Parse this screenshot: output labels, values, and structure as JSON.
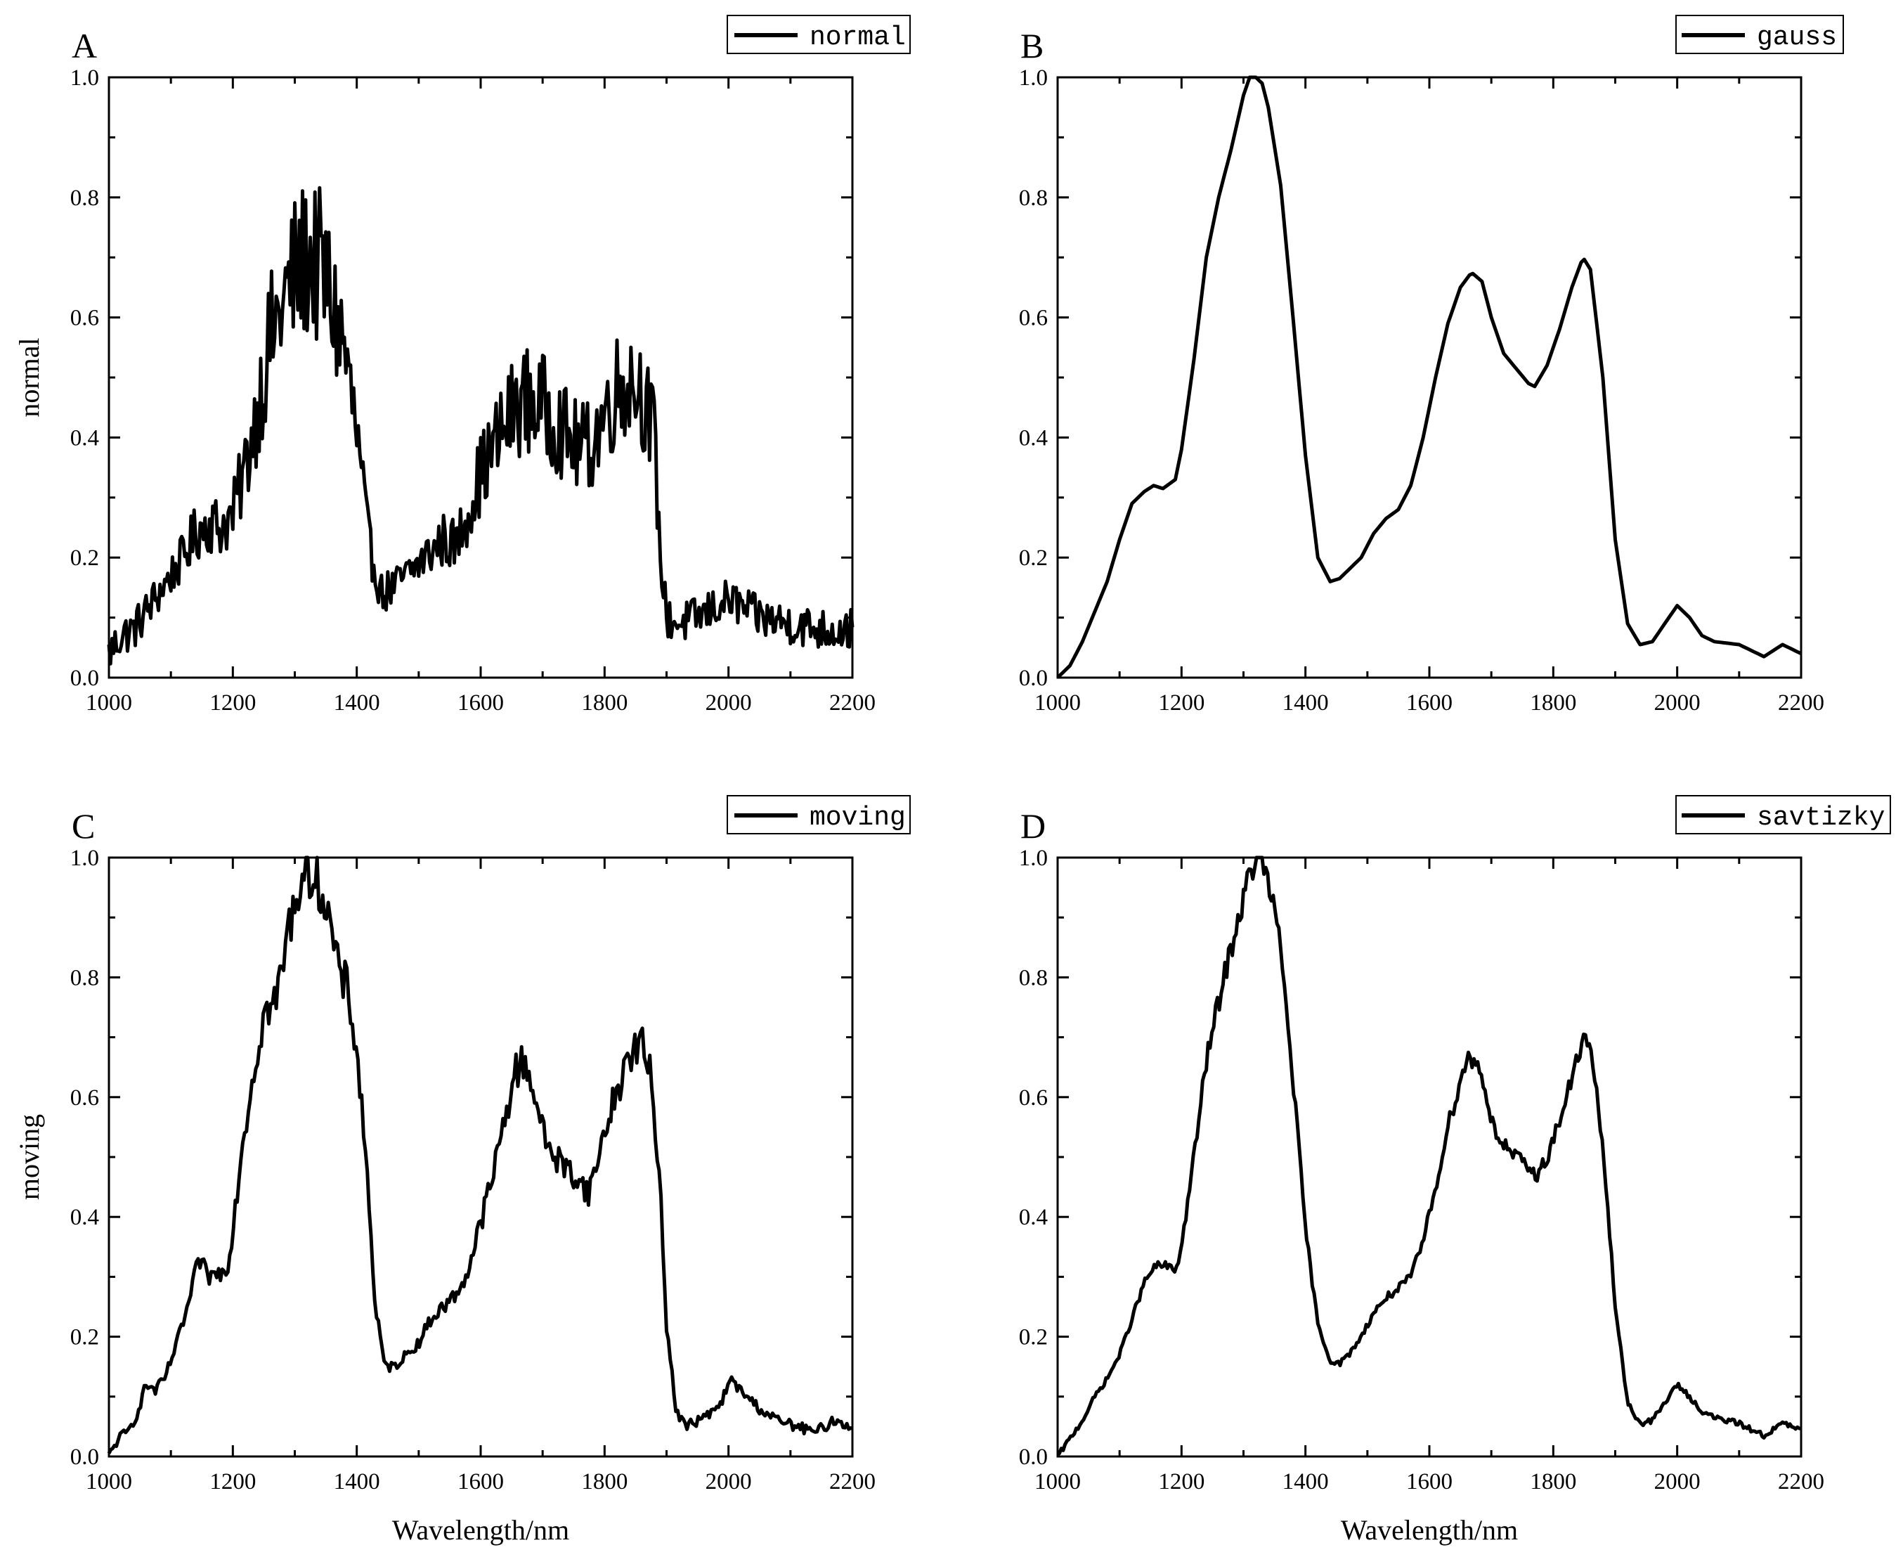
{
  "figure": {
    "x_axis_label": "Wavelength/nm"
  },
  "colors": {
    "line": "#000000",
    "axes": "#000000",
    "background": "#ffffff"
  },
  "chart_data": [
    {
      "panel": "A",
      "type": "line",
      "legend": "normal",
      "legend_position": "top-right",
      "ylabel": "normal",
      "xlabel": "",
      "xlim": [
        1000,
        2200
      ],
      "ylim": [
        0,
        1.0
      ],
      "xticks": [
        1000,
        1200,
        1400,
        1600,
        1800,
        2000,
        2200
      ],
      "yticks": [
        0.0,
        0.2,
        0.4,
        0.6,
        0.8,
        1.0
      ],
      "grid": false,
      "noise": 0.14,
      "series": [
        {
          "x": [
            1000,
            1020,
            1040,
            1060,
            1080,
            1100,
            1120,
            1140,
            1160,
            1180,
            1200,
            1220,
            1240,
            1260,
            1280,
            1300,
            1320,
            1340,
            1350,
            1360,
            1380,
            1400,
            1420,
            1440,
            1460,
            1480,
            1500,
            1520,
            1540,
            1560,
            1580,
            1600,
            1620,
            1640,
            1660,
            1680,
            1700,
            1720,
            1740,
            1760,
            1780,
            1800,
            1820,
            1840,
            1860,
            1880,
            1890,
            1900,
            1920,
            1950,
            2000,
            2050,
            2100,
            2150,
            2200
          ],
          "y": [
            0.04,
            0.07,
            0.08,
            0.11,
            0.14,
            0.17,
            0.2,
            0.24,
            0.26,
            0.25,
            0.27,
            0.35,
            0.45,
            0.56,
            0.62,
            0.67,
            0.7,
            0.68,
            0.66,
            0.62,
            0.55,
            0.4,
            0.22,
            0.14,
            0.15,
            0.17,
            0.19,
            0.21,
            0.23,
            0.22,
            0.28,
            0.34,
            0.38,
            0.42,
            0.46,
            0.46,
            0.45,
            0.43,
            0.4,
            0.38,
            0.39,
            0.44,
            0.48,
            0.5,
            0.48,
            0.4,
            0.2,
            0.1,
            0.09,
            0.1,
            0.13,
            0.1,
            0.09,
            0.08,
            0.08
          ]
        }
      ]
    },
    {
      "panel": "B",
      "type": "line",
      "legend": "gauss",
      "legend_position": "top-right",
      "ylabel": "",
      "xlabel": "",
      "xlim": [
        1000,
        2200
      ],
      "ylim": [
        0,
        1.0
      ],
      "xticks": [
        1000,
        1200,
        1400,
        1600,
        1800,
        2000,
        2200
      ],
      "yticks": [
        0.0,
        0.2,
        0.4,
        0.6,
        0.8,
        1.0
      ],
      "grid": false,
      "noise": 0,
      "series": [
        {
          "x": [
            1000,
            1020,
            1040,
            1060,
            1080,
            1100,
            1120,
            1140,
            1155,
            1170,
            1190,
            1200,
            1220,
            1240,
            1260,
            1280,
            1300,
            1310,
            1320,
            1330,
            1340,
            1360,
            1380,
            1400,
            1420,
            1440,
            1455,
            1470,
            1490,
            1510,
            1530,
            1550,
            1570,
            1590,
            1610,
            1630,
            1650,
            1668,
            1685,
            1700,
            1720,
            1740,
            1760,
            1770,
            1790,
            1810,
            1830,
            1848,
            1860,
            1880,
            1900,
            1920,
            1940,
            1960,
            1980,
            2000,
            2020,
            2040,
            2060,
            2100,
            2120,
            2140,
            2170,
            2200
          ],
          "y": [
            0.0,
            0.02,
            0.06,
            0.11,
            0.16,
            0.23,
            0.29,
            0.31,
            0.32,
            0.315,
            0.33,
            0.38,
            0.53,
            0.7,
            0.8,
            0.88,
            0.97,
            1.0,
            1.0,
            0.99,
            0.95,
            0.82,
            0.6,
            0.37,
            0.2,
            0.16,
            0.165,
            0.18,
            0.2,
            0.24,
            0.265,
            0.28,
            0.32,
            0.4,
            0.5,
            0.59,
            0.65,
            0.675,
            0.66,
            0.6,
            0.54,
            0.515,
            0.49,
            0.485,
            0.52,
            0.58,
            0.65,
            0.7,
            0.68,
            0.5,
            0.23,
            0.09,
            0.055,
            0.06,
            0.09,
            0.12,
            0.1,
            0.07,
            0.06,
            0.055,
            0.045,
            0.035,
            0.055,
            0.04
          ]
        }
      ]
    },
    {
      "panel": "C",
      "type": "line",
      "legend": "moving",
      "legend_position": "top-right",
      "ylabel": "moving",
      "xlabel": "Wavelength/nm",
      "xlim": [
        1000,
        2200
      ],
      "ylim": [
        0,
        1.0
      ],
      "xticks": [
        1000,
        1200,
        1400,
        1600,
        1800,
        2000,
        2200
      ],
      "yticks": [
        0.0,
        0.2,
        0.4,
        0.6,
        0.8,
        1.0
      ],
      "grid": false,
      "noise": 0.035,
      "series": [
        {
          "x": [
            1000,
            1015,
            1030,
            1045,
            1060,
            1075,
            1090,
            1110,
            1130,
            1145,
            1160,
            1175,
            1190,
            1200,
            1215,
            1230,
            1250,
            1270,
            1290,
            1310,
            1325,
            1340,
            1355,
            1370,
            1385,
            1400,
            1415,
            1430,
            1445,
            1460,
            1480,
            1500,
            1520,
            1540,
            1560,
            1580,
            1600,
            1620,
            1640,
            1655,
            1670,
            1685,
            1700,
            1720,
            1740,
            1760,
            1775,
            1790,
            1810,
            1830,
            1845,
            1860,
            1875,
            1890,
            1900,
            1915,
            1930,
            1950,
            1970,
            1990,
            2000,
            2020,
            2050,
            2080,
            2110,
            2140,
            2170,
            2200
          ],
          "y": [
            0.0,
            0.03,
            0.04,
            0.07,
            0.12,
            0.11,
            0.13,
            0.19,
            0.26,
            0.33,
            0.3,
            0.305,
            0.31,
            0.38,
            0.52,
            0.62,
            0.74,
            0.76,
            0.88,
            0.97,
            0.98,
            0.96,
            0.9,
            0.81,
            0.78,
            0.68,
            0.5,
            0.25,
            0.15,
            0.15,
            0.17,
            0.19,
            0.23,
            0.25,
            0.27,
            0.31,
            0.39,
            0.47,
            0.57,
            0.64,
            0.66,
            0.62,
            0.54,
            0.5,
            0.48,
            0.46,
            0.44,
            0.5,
            0.58,
            0.64,
            0.68,
            0.69,
            0.63,
            0.45,
            0.22,
            0.08,
            0.05,
            0.06,
            0.07,
            0.09,
            0.13,
            0.11,
            0.08,
            0.06,
            0.05,
            0.04,
            0.06,
            0.05
          ]
        }
      ]
    },
    {
      "panel": "D",
      "type": "line",
      "legend": "savtizky",
      "legend_position": "top-right",
      "ylabel": "",
      "xlabel": "Wavelength/nm",
      "xlim": [
        1000,
        2200
      ],
      "ylim": [
        0,
        1.0
      ],
      "xticks": [
        1000,
        1200,
        1400,
        1600,
        1800,
        2000,
        2200
      ],
      "yticks": [
        0.0,
        0.2,
        0.4,
        0.6,
        0.8,
        1.0
      ],
      "grid": false,
      "noise": 0.018,
      "series": [
        {
          "x": [
            1000,
            1020,
            1040,
            1060,
            1080,
            1100,
            1120,
            1140,
            1155,
            1170,
            1190,
            1200,
            1220,
            1240,
            1260,
            1280,
            1300,
            1310,
            1320,
            1330,
            1340,
            1360,
            1380,
            1400,
            1420,
            1440,
            1455,
            1470,
            1490,
            1510,
            1530,
            1550,
            1570,
            1590,
            1610,
            1630,
            1650,
            1665,
            1685,
            1700,
            1720,
            1740,
            1760,
            1775,
            1790,
            1810,
            1830,
            1848,
            1860,
            1880,
            1900,
            1920,
            1940,
            1960,
            1980,
            2000,
            2020,
            2040,
            2060,
            2100,
            2120,
            2140,
            2170,
            2200
          ],
          "y": [
            0.0,
            0.03,
            0.06,
            0.1,
            0.13,
            0.17,
            0.23,
            0.29,
            0.315,
            0.32,
            0.31,
            0.35,
            0.5,
            0.66,
            0.76,
            0.85,
            0.93,
            0.97,
            1.0,
            0.99,
            0.96,
            0.85,
            0.63,
            0.38,
            0.22,
            0.16,
            0.155,
            0.17,
            0.2,
            0.24,
            0.265,
            0.28,
            0.3,
            0.36,
            0.45,
            0.55,
            0.63,
            0.67,
            0.64,
            0.56,
            0.52,
            0.5,
            0.48,
            0.47,
            0.5,
            0.56,
            0.63,
            0.7,
            0.68,
            0.52,
            0.25,
            0.09,
            0.055,
            0.06,
            0.09,
            0.12,
            0.1,
            0.075,
            0.065,
            0.055,
            0.045,
            0.035,
            0.055,
            0.045
          ]
        }
      ]
    }
  ]
}
